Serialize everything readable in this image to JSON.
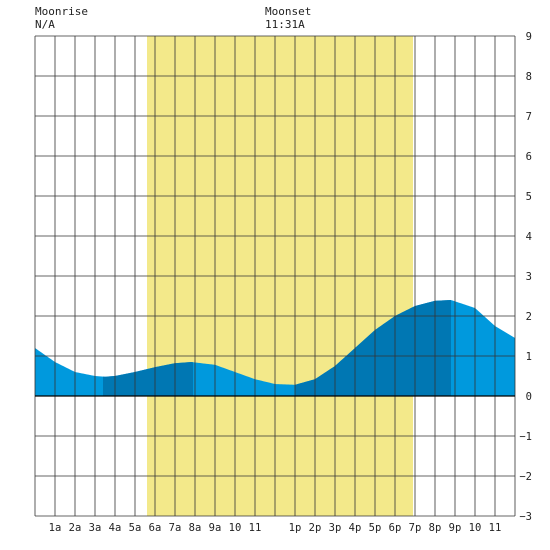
{
  "header": {
    "moonrise_label": "Moonrise",
    "moonrise_value": "N/A",
    "moonset_label": "Moonset",
    "moonset_value": "11:31A"
  },
  "colors": {
    "daylight": "#f3e98a",
    "tide_light": "#0099dd",
    "tide_dark": "#0077b3",
    "grid": "#333333",
    "axis": "#000000"
  },
  "chart_data": {
    "type": "area",
    "title": "",
    "xlabel": "",
    "ylabel": "",
    "xlim": [
      0,
      24
    ],
    "ylim": [
      -3,
      9
    ],
    "grid": true,
    "x_tick_labels": [
      "1a",
      "2a",
      "3a",
      "4a",
      "5a",
      "6a",
      "7a",
      "8a",
      "9a",
      "10",
      "11",
      "1p",
      "2p",
      "3p",
      "4p",
      "5p",
      "6p",
      "7p",
      "8p",
      "9p",
      "10",
      "11"
    ],
    "x_tick_hours": [
      1,
      2,
      3,
      4,
      5,
      6,
      7,
      8,
      9,
      10,
      11,
      13,
      14,
      15,
      16,
      17,
      18,
      19,
      20,
      21,
      22,
      23
    ],
    "y_ticks": [
      -3,
      -2,
      -1,
      0,
      1,
      2,
      3,
      4,
      5,
      6,
      7,
      8,
      9
    ],
    "daylight_hours": [
      5.6,
      18.9
    ],
    "dark_segments": [
      [
        3.4,
        7.9
      ],
      [
        13.0,
        20.8
      ]
    ],
    "series": [
      {
        "x": [
          0,
          1,
          2,
          3,
          3.5,
          4,
          5,
          6,
          7,
          7.8,
          9,
          10,
          11,
          12,
          13,
          14,
          15,
          16,
          17,
          18,
          19,
          20,
          20.8,
          22,
          23,
          24
        ],
        "values": [
          1.2,
          0.85,
          0.6,
          0.5,
          0.48,
          0.5,
          0.6,
          0.72,
          0.82,
          0.85,
          0.78,
          0.6,
          0.42,
          0.3,
          0.28,
          0.42,
          0.75,
          1.2,
          1.65,
          2.0,
          2.25,
          2.38,
          2.4,
          2.2,
          1.75,
          1.45
        ]
      }
    ]
  }
}
